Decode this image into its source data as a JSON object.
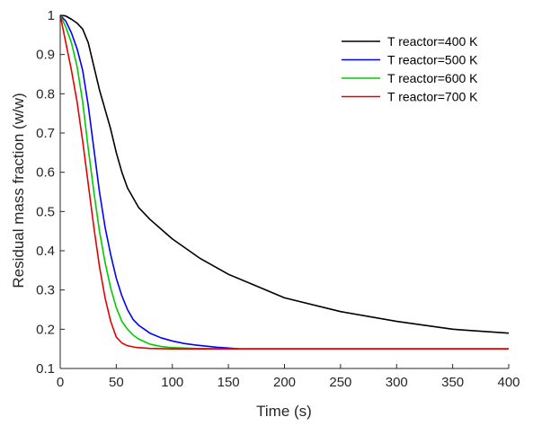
{
  "chart_data": {
    "type": "line",
    "xlabel": "Time (s)",
    "ylabel": "Residual mass fraction (w/w)",
    "xlim": [
      0,
      400
    ],
    "ylim": [
      0.1,
      1
    ],
    "xticks": [
      0,
      50,
      100,
      150,
      200,
      250,
      300,
      350,
      400
    ],
    "yticks": [
      0.1,
      0.2,
      0.3,
      0.4,
      0.5,
      0.6,
      0.7,
      0.8,
      0.9,
      1
    ],
    "xtick_labels": [
      "0",
      "50",
      "100",
      "150",
      "200",
      "250",
      "300",
      "350",
      "400"
    ],
    "ytick_labels": [
      "0.1",
      "0.2",
      "0.3",
      "0.4",
      "0.5",
      "0.6",
      "0.7",
      "0.8",
      "0.9",
      "1"
    ],
    "grid": false,
    "legend_position": "top-right",
    "series": [
      {
        "name": "T reactor=400 K",
        "color": "#000000",
        "x": [
          0,
          5,
          10,
          15,
          20,
          25,
          30,
          35,
          40,
          45,
          50,
          55,
          60,
          70,
          80,
          90,
          100,
          125,
          150,
          175,
          200,
          250,
          300,
          350,
          400
        ],
        "y": [
          1.0,
          0.998,
          0.99,
          0.98,
          0.965,
          0.93,
          0.87,
          0.81,
          0.76,
          0.71,
          0.65,
          0.6,
          0.56,
          0.51,
          0.48,
          0.455,
          0.43,
          0.38,
          0.34,
          0.31,
          0.28,
          0.245,
          0.22,
          0.2,
          0.19
        ]
      },
      {
        "name": "T reactor=500 K",
        "color": "#0000ff",
        "x": [
          0,
          5,
          10,
          15,
          20,
          25,
          30,
          35,
          40,
          45,
          50,
          55,
          60,
          65,
          70,
          75,
          80,
          90,
          100,
          110,
          120,
          140,
          160,
          200,
          300,
          400
        ],
        "y": [
          1.0,
          0.985,
          0.955,
          0.915,
          0.86,
          0.77,
          0.66,
          0.55,
          0.46,
          0.39,
          0.33,
          0.285,
          0.25,
          0.225,
          0.21,
          0.2,
          0.19,
          0.178,
          0.17,
          0.164,
          0.16,
          0.154,
          0.15,
          0.15,
          0.15,
          0.15
        ]
      },
      {
        "name": "T reactor=600 K",
        "color": "#00cc00",
        "x": [
          0,
          5,
          10,
          15,
          20,
          25,
          30,
          35,
          40,
          45,
          50,
          55,
          60,
          65,
          70,
          80,
          90,
          100,
          120,
          150,
          200,
          300,
          400
        ],
        "y": [
          1.0,
          0.97,
          0.93,
          0.87,
          0.78,
          0.66,
          0.55,
          0.45,
          0.37,
          0.305,
          0.255,
          0.22,
          0.2,
          0.185,
          0.175,
          0.162,
          0.156,
          0.153,
          0.151,
          0.15,
          0.15,
          0.15,
          0.15
        ]
      },
      {
        "name": "T reactor=700 K",
        "color": "#e60000",
        "x": [
          0,
          5,
          10,
          15,
          20,
          25,
          30,
          35,
          40,
          45,
          50,
          55,
          60,
          65,
          70,
          80,
          100,
          150,
          200,
          300,
          400
        ],
        "y": [
          1.0,
          0.93,
          0.86,
          0.78,
          0.68,
          0.57,
          0.46,
          0.36,
          0.28,
          0.22,
          0.18,
          0.165,
          0.158,
          0.155,
          0.153,
          0.151,
          0.15,
          0.15,
          0.15,
          0.15,
          0.15
        ]
      }
    ]
  }
}
